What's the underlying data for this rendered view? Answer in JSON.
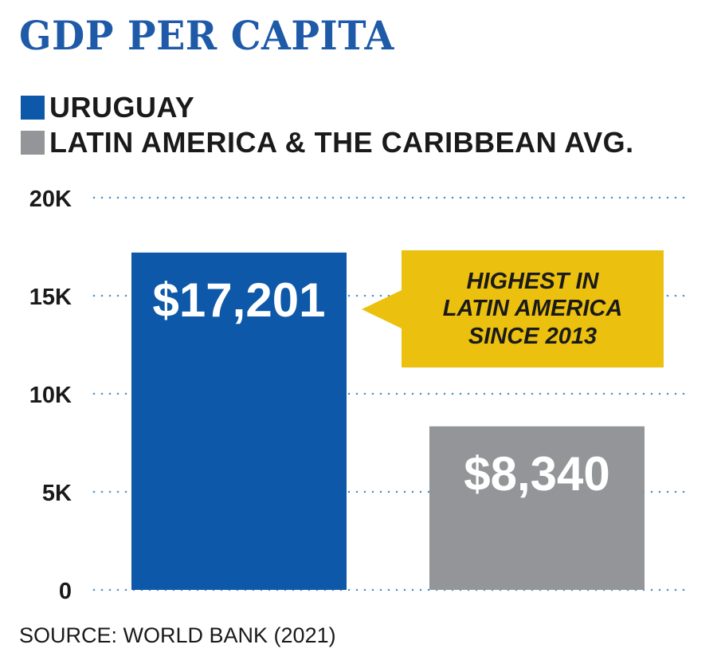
{
  "chart_data": {
    "type": "bar",
    "title": "GDP PER CAPITA",
    "categories": [
      "URUGUAY",
      "LATIN AMERICA & THE CARIBBEAN AVG."
    ],
    "values": [
      17201,
      8340
    ],
    "value_labels": [
      "$17,201",
      "$8,340"
    ],
    "colors": [
      "#0d58a8",
      "#939598"
    ],
    "yticks": [
      0,
      5000,
      10000,
      15000,
      20000
    ],
    "ytick_labels": [
      "0",
      "5K",
      "10K",
      "15K",
      "20K"
    ],
    "ylim": [
      0,
      20000
    ],
    "grid": "dotted horizontal",
    "legend": "top-left",
    "annotation": "HIGHEST IN\nLATIN AMERICA\nSINCE 2013",
    "source": "SOURCE: WORLD BANK (2021)"
  },
  "colors": {
    "title": "#1e5aa8",
    "grid": "#4a90c8",
    "callout": "#ecc00e"
  }
}
